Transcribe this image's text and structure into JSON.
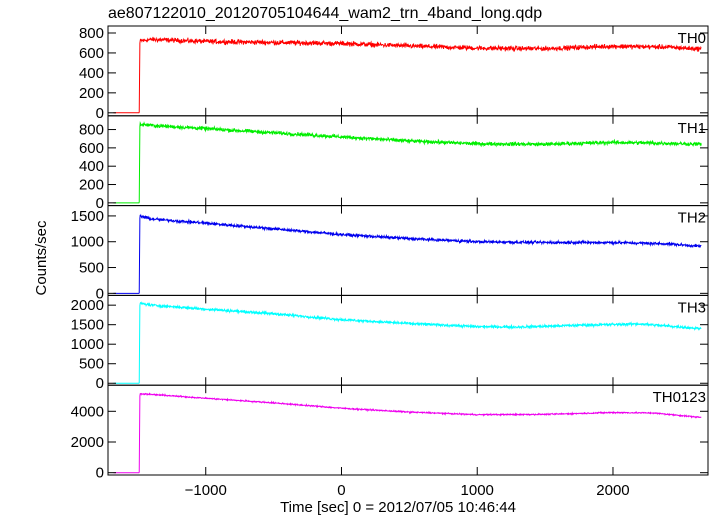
{
  "chart_data": {
    "type": "line",
    "title": "ae807122010_20120705104644_wam2_trn_4band_long.qdp",
    "xlabel": "Time [sec] 0 = 2012/07/05 10:46:44",
    "ylabel": "Counts/sec",
    "xlim": [
      -1720,
      2700
    ],
    "xticks": [
      -1000,
      0,
      1000,
      2000
    ],
    "grid": false,
    "panels": [
      {
        "name": "TH0",
        "color": "#ff0000",
        "ylim": [
          -30,
          870
        ],
        "yticks": [
          0,
          200,
          400,
          600,
          800
        ],
        "noise": 35,
        "points": [
          [
            -1680,
            0
          ],
          [
            -1500,
            0
          ],
          [
            -1490,
            0
          ],
          [
            -1485,
            720
          ],
          [
            -1400,
            735
          ],
          [
            -1000,
            715
          ],
          [
            -500,
            705
          ],
          [
            0,
            695
          ],
          [
            500,
            670
          ],
          [
            1000,
            648
          ],
          [
            1500,
            643
          ],
          [
            2000,
            668
          ],
          [
            2400,
            658
          ],
          [
            2650,
            640
          ]
        ]
      },
      {
        "name": "TH1",
        "color": "#00ee00",
        "ylim": [
          -30,
          950
        ],
        "yticks": [
          0,
          200,
          400,
          600,
          800
        ],
        "noise": 30,
        "points": [
          [
            -1680,
            0
          ],
          [
            -1500,
            0
          ],
          [
            -1490,
            0
          ],
          [
            -1485,
            860
          ],
          [
            -1400,
            845
          ],
          [
            -1000,
            810
          ],
          [
            -500,
            765
          ],
          [
            0,
            720
          ],
          [
            500,
            675
          ],
          [
            1000,
            645
          ],
          [
            1500,
            640
          ],
          [
            2000,
            660
          ],
          [
            2400,
            650
          ],
          [
            2650,
            640
          ]
        ]
      },
      {
        "name": "TH2",
        "color": "#0000ee",
        "ylim": [
          -40,
          1700
        ],
        "yticks": [
          0,
          500,
          1000,
          1500
        ],
        "noise": 40,
        "points": [
          [
            -1680,
            0
          ],
          [
            -1500,
            0
          ],
          [
            -1490,
            0
          ],
          [
            -1485,
            1500
          ],
          [
            -1400,
            1440
          ],
          [
            -1000,
            1360
          ],
          [
            -500,
            1250
          ],
          [
            0,
            1140
          ],
          [
            500,
            1060
          ],
          [
            1000,
            1000
          ],
          [
            1500,
            985
          ],
          [
            2000,
            985
          ],
          [
            2400,
            960
          ],
          [
            2650,
            910
          ]
        ]
      },
      {
        "name": "TH3",
        "color": "#00ffff",
        "ylim": [
          -50,
          2250
        ],
        "yticks": [
          0,
          500,
          1000,
          1500,
          2000
        ],
        "noise": 50,
        "points": [
          [
            -1680,
            0
          ],
          [
            -1500,
            0
          ],
          [
            -1490,
            0
          ],
          [
            -1485,
            2050
          ],
          [
            -1400,
            2000
          ],
          [
            -1000,
            1900
          ],
          [
            -500,
            1780
          ],
          [
            0,
            1630
          ],
          [
            500,
            1530
          ],
          [
            1000,
            1450
          ],
          [
            1300,
            1440
          ],
          [
            1800,
            1490
          ],
          [
            2200,
            1520
          ],
          [
            2650,
            1400
          ]
        ]
      },
      {
        "name": "TH0123",
        "color": "#ee00ee",
        "ylim": [
          -150,
          5700
        ],
        "yticks": [
          0,
          2000,
          4000
        ],
        "noise": 60,
        "points": [
          [
            -1680,
            0
          ],
          [
            -1500,
            0
          ],
          [
            -1490,
            0
          ],
          [
            -1485,
            5150
          ],
          [
            -1400,
            5100
          ],
          [
            -1000,
            4850
          ],
          [
            -500,
            4550
          ],
          [
            0,
            4200
          ],
          [
            500,
            3950
          ],
          [
            1000,
            3780
          ],
          [
            1500,
            3800
          ],
          [
            2000,
            3920
          ],
          [
            2300,
            3890
          ],
          [
            2650,
            3600
          ]
        ]
      }
    ]
  }
}
